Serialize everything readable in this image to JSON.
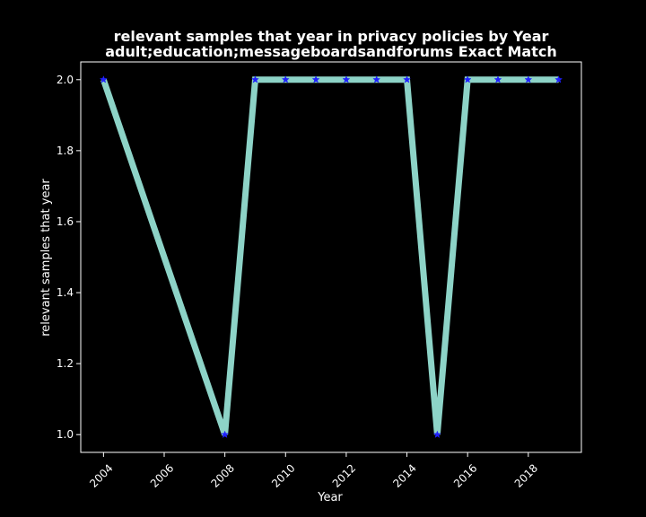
{
  "chart_data": {
    "type": "line",
    "title": "relevant samples that year in privacy policies by Year",
    "subtitle": "adult;education;messageboardsandforums Exact Match",
    "xlabel": "Year",
    "ylabel": "relevant samples that year",
    "x": [
      2004,
      2008,
      2009,
      2010,
      2011,
      2012,
      2013,
      2014,
      2015,
      2016,
      2017,
      2018,
      2019
    ],
    "series": [
      {
        "values": [
          2,
          1,
          2,
          2,
          2,
          2,
          2,
          2,
          1,
          2,
          2,
          2,
          2
        ]
      }
    ],
    "xlim": [
      2003.25,
      2019.75
    ],
    "ylim": [
      0.95,
      2.05
    ],
    "xticks": [
      2004,
      2006,
      2008,
      2010,
      2012,
      2014,
      2016,
      2018
    ],
    "yticks": [
      "1.0",
      "1.2",
      "1.4",
      "1.6",
      "1.8",
      "2.0"
    ],
    "grid": false,
    "colors": {
      "background": "#000000",
      "line": "#8dd3c7",
      "marker": "#1f1fff",
      "text": "#ffffff",
      "axes": "#ffffff"
    },
    "marker": "star"
  }
}
